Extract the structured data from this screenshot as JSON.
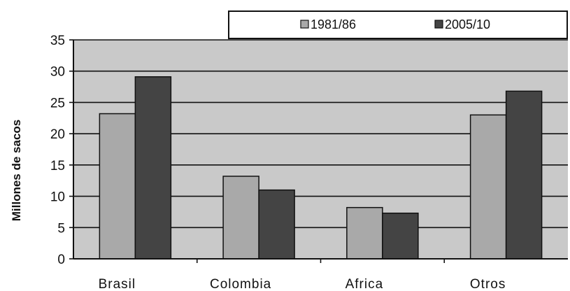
{
  "chart_data": {
    "type": "bar",
    "title": "",
    "xlabel": "",
    "ylabel": "Millones de sacos",
    "categories": [
      "Brasil",
      "Colombia",
      "Africa",
      "Otros"
    ],
    "series": [
      {
        "name": "1981/86",
        "values": [
          23.2,
          13.2,
          8.2,
          23.0
        ],
        "color": "#a9a9a9"
      },
      {
        "name": "2005/10",
        "values": [
          29.1,
          11.0,
          7.3,
          26.8
        ],
        "color": "#444444"
      }
    ],
    "ylim": [
      0,
      35
    ],
    "yticks": [
      0,
      5,
      10,
      15,
      20,
      25,
      30,
      35
    ],
    "grid": true,
    "legend_position": "top",
    "plot_background": "#c9c9c9",
    "gridline_color": "#111111",
    "bar_outline_color": "#111111"
  }
}
